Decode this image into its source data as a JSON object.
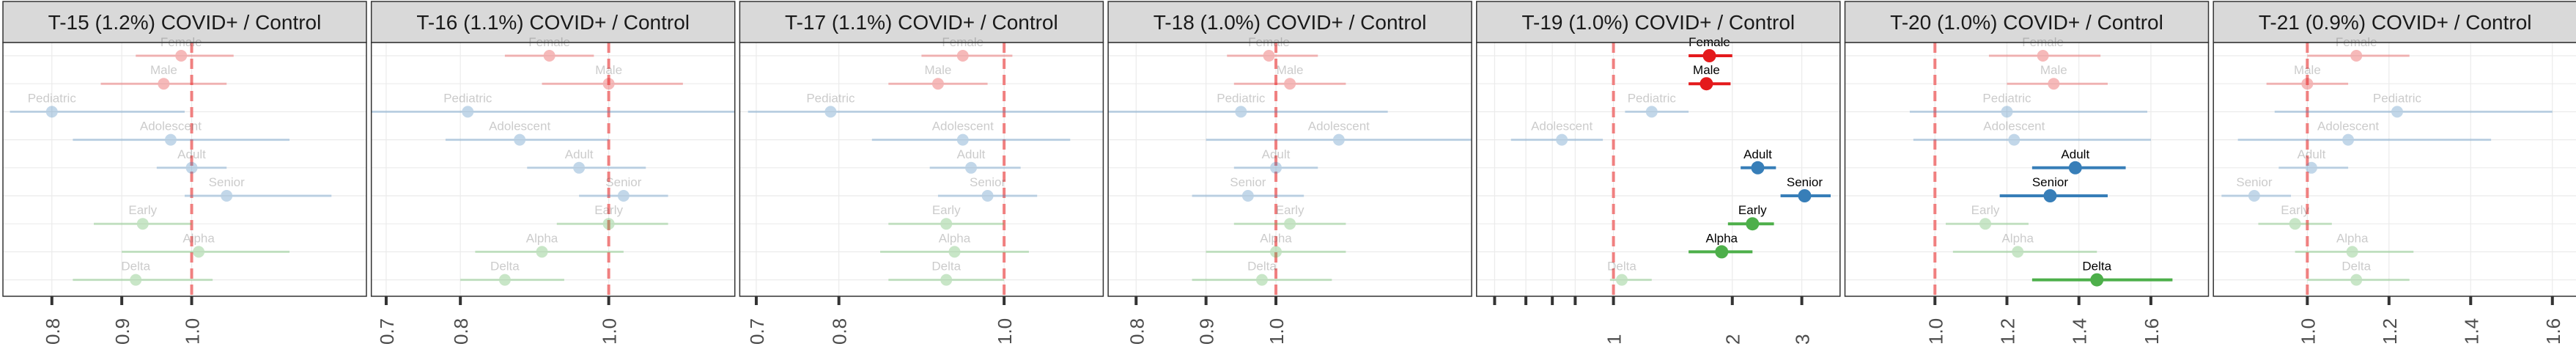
{
  "chart_data": {
    "type": "scatter",
    "subtype": "forest-plot-facets",
    "rows": [
      "Female",
      "Male",
      "Pediatric",
      "Adolescent",
      "Adult",
      "Senior",
      "Early",
      "Alpha",
      "Delta"
    ],
    "row_colors": {
      "Female": "#e41a1c",
      "Male": "#e41a1c",
      "Pediatric": "#377eb8",
      "Adolescent": "#377eb8",
      "Adult": "#377eb8",
      "Senior": "#377eb8",
      "Early": "#4daf4a",
      "Alpha": "#4daf4a",
      "Delta": "#4daf4a"
    },
    "reference_line": 1.0,
    "reference_line_color": "#f08080",
    "strip_color": "#d9d9d9",
    "grid": true,
    "legend": "none",
    "panels": [
      {
        "title": "T-15 (1.2%) COVID+ / Control",
        "scale": "linear",
        "xlim": [
          0.73,
          1.25
        ],
        "ticks": [
          0.8,
          0.9,
          1.0
        ],
        "tick_labels": [
          "0.8",
          "0.9",
          "1.0"
        ],
        "points": [
          {
            "label": "Female",
            "est": 0.985,
            "lo": 0.92,
            "hi": 1.06,
            "highlight": false
          },
          {
            "label": "Male",
            "est": 0.96,
            "lo": 0.87,
            "hi": 1.05,
            "highlight": false
          },
          {
            "label": "Pediatric",
            "est": 0.8,
            "lo": 0.74,
            "hi": 0.99,
            "highlight": false
          },
          {
            "label": "Adolescent",
            "est": 0.97,
            "lo": 0.83,
            "hi": 1.14,
            "highlight": false
          },
          {
            "label": "Adult",
            "est": 1.0,
            "lo": 0.95,
            "hi": 1.05,
            "highlight": false
          },
          {
            "label": "Senior",
            "est": 1.05,
            "lo": 0.99,
            "hi": 1.2,
            "highlight": false
          },
          {
            "label": "Early",
            "est": 0.93,
            "lo": 0.86,
            "hi": 1.0,
            "highlight": false
          },
          {
            "label": "Alpha",
            "est": 1.01,
            "lo": 0.9,
            "hi": 1.14,
            "highlight": false
          },
          {
            "label": "Delta",
            "est": 0.92,
            "lo": 0.83,
            "hi": 1.03,
            "highlight": false
          }
        ]
      },
      {
        "title": "T-16 (1.1%) COVID+ / Control",
        "scale": "linear",
        "xlim": [
          0.68,
          1.17
        ],
        "ticks": [
          0.7,
          0.8,
          1.0
        ],
        "tick_labels": [
          "0.7",
          "0.8",
          "1.0"
        ],
        "points": [
          {
            "label": "Female",
            "est": 0.92,
            "lo": 0.86,
            "hi": 0.98,
            "highlight": false
          },
          {
            "label": "Male",
            "est": 1.0,
            "lo": 0.91,
            "hi": 1.1,
            "highlight": false
          },
          {
            "label": "Pediatric",
            "est": 0.81,
            "lo": 0.68,
            "hi": 1.17,
            "highlight": false
          },
          {
            "label": "Adolescent",
            "est": 0.88,
            "lo": 0.78,
            "hi": 1.0,
            "highlight": false
          },
          {
            "label": "Adult",
            "est": 0.96,
            "lo": 0.89,
            "hi": 1.05,
            "highlight": false
          },
          {
            "label": "Senior",
            "est": 1.02,
            "lo": 0.96,
            "hi": 1.08,
            "highlight": false
          },
          {
            "label": "Early",
            "est": 1.0,
            "lo": 0.93,
            "hi": 1.08,
            "highlight": false
          },
          {
            "label": "Alpha",
            "est": 0.91,
            "lo": 0.82,
            "hi": 1.02,
            "highlight": false
          },
          {
            "label": "Delta",
            "est": 0.86,
            "lo": 0.8,
            "hi": 0.94,
            "highlight": false
          }
        ]
      },
      {
        "title": "T-17 (1.1%) COVID+ / Control",
        "scale": "linear",
        "xlim": [
          0.68,
          1.12
        ],
        "ticks": [
          0.7,
          0.8,
          1.0
        ],
        "tick_labels": [
          "0.7",
          "0.8",
          "1.0"
        ],
        "points": [
          {
            "label": "Female",
            "est": 0.95,
            "lo": 0.9,
            "hi": 1.01,
            "highlight": false
          },
          {
            "label": "Male",
            "est": 0.92,
            "lo": 0.86,
            "hi": 0.98,
            "highlight": false
          },
          {
            "label": "Pediatric",
            "est": 0.79,
            "lo": 0.69,
            "hi": 1.12,
            "highlight": false
          },
          {
            "label": "Adolescent",
            "est": 0.95,
            "lo": 0.84,
            "hi": 1.08,
            "highlight": false
          },
          {
            "label": "Adult",
            "est": 0.96,
            "lo": 0.91,
            "hi": 1.02,
            "highlight": false
          },
          {
            "label": "Senior",
            "est": 0.98,
            "lo": 0.92,
            "hi": 1.04,
            "highlight": false
          },
          {
            "label": "Early",
            "est": 0.93,
            "lo": 0.86,
            "hi": 1.0,
            "highlight": false
          },
          {
            "label": "Alpha",
            "est": 0.94,
            "lo": 0.85,
            "hi": 1.03,
            "highlight": false
          },
          {
            "label": "Delta",
            "est": 0.93,
            "lo": 0.86,
            "hi": 1.0,
            "highlight": false
          }
        ]
      },
      {
        "title": "T-18 (1.0%) COVID+ / Control",
        "scale": "linear",
        "xlim": [
          0.76,
          1.28
        ],
        "ticks": [
          0.8,
          0.9,
          1.0
        ],
        "tick_labels": [
          "0.8",
          "0.9",
          "1.0"
        ],
        "points": [
          {
            "label": "Female",
            "est": 0.99,
            "lo": 0.93,
            "hi": 1.06,
            "highlight": false
          },
          {
            "label": "Male",
            "est": 1.02,
            "lo": 0.94,
            "hi": 1.1,
            "highlight": false
          },
          {
            "label": "Pediatric",
            "est": 0.95,
            "lo": 0.76,
            "hi": 1.16,
            "highlight": false
          },
          {
            "label": "Adolescent",
            "est": 1.09,
            "lo": 0.9,
            "hi": 1.28,
            "highlight": false
          },
          {
            "label": "Adult",
            "est": 1.0,
            "lo": 0.94,
            "hi": 1.06,
            "highlight": false
          },
          {
            "label": "Senior",
            "est": 0.96,
            "lo": 0.88,
            "hi": 1.04,
            "highlight": false
          },
          {
            "label": "Early",
            "est": 1.02,
            "lo": 0.94,
            "hi": 1.1,
            "highlight": false
          },
          {
            "label": "Alpha",
            "est": 1.0,
            "lo": 0.9,
            "hi": 1.1,
            "highlight": false
          },
          {
            "label": "Delta",
            "est": 0.98,
            "lo": 0.88,
            "hi": 1.08,
            "highlight": false
          }
        ]
      },
      {
        "title": "T-19 (1.0%) COVID+ / Control",
        "scale": "log",
        "xlim": [
          0.45,
          3.75
        ],
        "ticks": [
          0.5,
          0.6,
          0.7,
          0.8,
          1,
          2,
          3
        ],
        "tick_labels": [
          "",
          "",
          "",
          "",
          "1",
          "2",
          "3"
        ],
        "points": [
          {
            "label": "Female",
            "est": 1.75,
            "lo": 1.55,
            "hi": 2.0,
            "highlight": true
          },
          {
            "label": "Male",
            "est": 1.72,
            "lo": 1.55,
            "hi": 1.98,
            "highlight": true
          },
          {
            "label": "Pediatric",
            "est": 1.25,
            "lo": 1.07,
            "hi": 1.55,
            "highlight": false
          },
          {
            "label": "Adolescent",
            "est": 0.74,
            "lo": 0.55,
            "hi": 0.94,
            "highlight": false
          },
          {
            "label": "Adult",
            "est": 2.32,
            "lo": 2.1,
            "hi": 2.58,
            "highlight": true
          },
          {
            "label": "Senior",
            "est": 3.05,
            "lo": 2.65,
            "hi": 3.55,
            "highlight": true
          },
          {
            "label": "Early",
            "est": 2.25,
            "lo": 1.95,
            "hi": 2.55,
            "highlight": true
          },
          {
            "label": "Alpha",
            "est": 1.88,
            "lo": 1.55,
            "hi": 2.25,
            "highlight": true
          },
          {
            "label": "Delta",
            "est": 1.05,
            "lo": 0.98,
            "hi": 1.25,
            "highlight": false
          }
        ]
      },
      {
        "title": "T-20 (1.0%) COVID+ / Control",
        "scale": "linear",
        "xlim": [
          0.75,
          1.76
        ],
        "ticks": [
          1.0,
          1.2,
          1.4,
          1.6
        ],
        "tick_labels": [
          "1.0",
          "1.2",
          "1.4",
          "1.6"
        ],
        "points": [
          {
            "label": "Female",
            "est": 1.3,
            "lo": 1.15,
            "hi": 1.46,
            "highlight": false
          },
          {
            "label": "Male",
            "est": 1.33,
            "lo": 1.2,
            "hi": 1.48,
            "highlight": false
          },
          {
            "label": "Pediatric",
            "est": 1.2,
            "lo": 0.93,
            "hi": 1.59,
            "highlight": false
          },
          {
            "label": "Adolescent",
            "est": 1.22,
            "lo": 0.94,
            "hi": 1.6,
            "highlight": false
          },
          {
            "label": "Adult",
            "est": 1.39,
            "lo": 1.27,
            "hi": 1.53,
            "highlight": true
          },
          {
            "label": "Senior",
            "est": 1.32,
            "lo": 1.18,
            "hi": 1.48,
            "highlight": true
          },
          {
            "label": "Early",
            "est": 1.14,
            "lo": 1.03,
            "hi": 1.26,
            "highlight": false
          },
          {
            "label": "Alpha",
            "est": 1.23,
            "lo": 1.05,
            "hi": 1.45,
            "highlight": false
          },
          {
            "label": "Delta",
            "est": 1.45,
            "lo": 1.27,
            "hi": 1.66,
            "highlight": true
          }
        ]
      },
      {
        "title": "T-21 (0.9%) COVID+ / Control",
        "scale": "linear",
        "xlim": [
          0.77,
          1.66
        ],
        "ticks": [
          1.0,
          1.2,
          1.4,
          1.6
        ],
        "tick_labels": [
          "1.0",
          "1.2",
          "1.4",
          "1.6"
        ],
        "points": [
          {
            "label": "Female",
            "est": 1.12,
            "lo": 1.0,
            "hi": 1.25,
            "highlight": false
          },
          {
            "label": "Male",
            "est": 1.0,
            "lo": 0.9,
            "hi": 1.1,
            "highlight": false
          },
          {
            "label": "Pediatric",
            "est": 1.22,
            "lo": 0.92,
            "hi": 1.6,
            "highlight": false
          },
          {
            "label": "Adolescent",
            "est": 1.1,
            "lo": 0.83,
            "hi": 1.45,
            "highlight": false
          },
          {
            "label": "Adult",
            "est": 1.01,
            "lo": 0.93,
            "hi": 1.1,
            "highlight": false
          },
          {
            "label": "Senior",
            "est": 0.87,
            "lo": 0.79,
            "hi": 0.96,
            "highlight": false
          },
          {
            "label": "Early",
            "est": 0.97,
            "lo": 0.88,
            "hi": 1.06,
            "highlight": false
          },
          {
            "label": "Alpha",
            "est": 1.11,
            "lo": 0.97,
            "hi": 1.26,
            "highlight": false
          },
          {
            "label": "Delta",
            "est": 1.12,
            "lo": 1.0,
            "hi": 1.25,
            "highlight": false
          }
        ]
      }
    ]
  }
}
